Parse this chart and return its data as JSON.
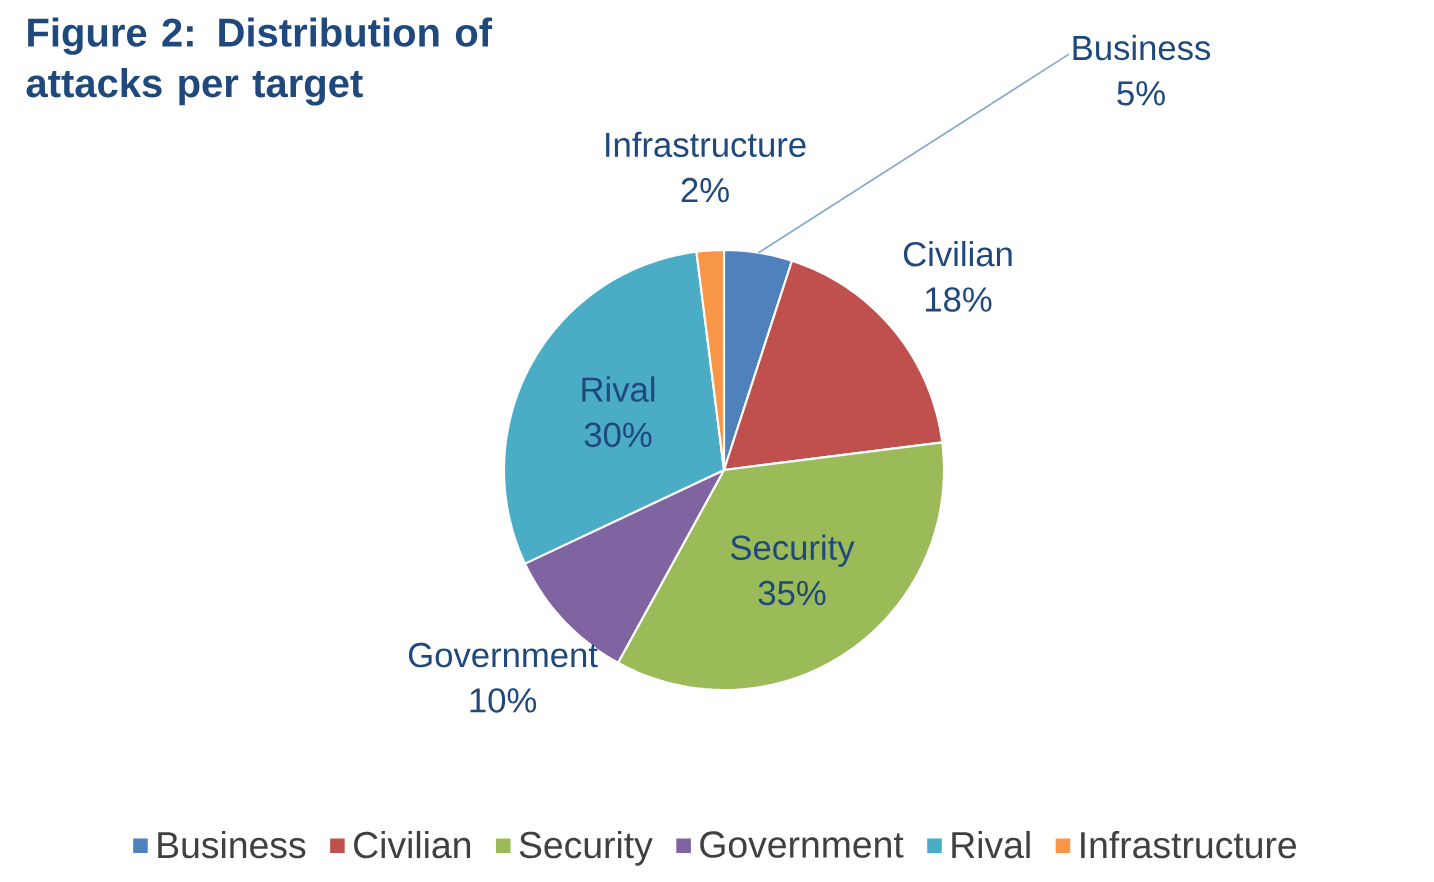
{
  "chart_data": {
    "type": "pie",
    "title": "Figure 2: Distribution of attacks per target",
    "categories": [
      "Business",
      "Civilian",
      "Security",
      "Government",
      "Rival",
      "Infrastructure"
    ],
    "values": [
      5,
      18,
      35,
      10,
      30,
      2
    ],
    "colors": [
      "#4f81bd",
      "#c0504d",
      "#9bbb59",
      "#8064a2",
      "#4bacc6",
      "#f79646"
    ],
    "value_labels": [
      "5%",
      "18%",
      "35%",
      "10%",
      "30%",
      "2%"
    ],
    "legend": "bottom"
  }
}
